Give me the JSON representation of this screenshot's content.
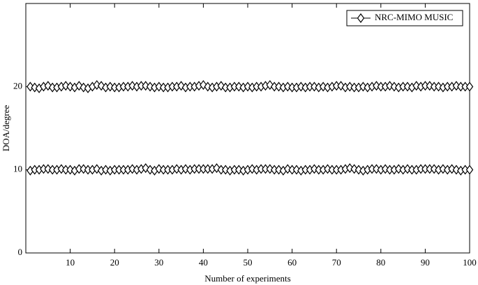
{
  "chart_data": {
    "type": "line",
    "xlabel": "Number of experiments",
    "ylabel": "DOA/degree",
    "x": [
      1,
      2,
      3,
      4,
      5,
      6,
      7,
      8,
      9,
      10,
      11,
      12,
      13,
      14,
      15,
      16,
      17,
      18,
      19,
      20,
      21,
      22,
      23,
      24,
      25,
      26,
      27,
      28,
      29,
      30,
      31,
      32,
      33,
      34,
      35,
      36,
      37,
      38,
      39,
      40,
      41,
      42,
      43,
      44,
      45,
      46,
      47,
      48,
      49,
      50,
      51,
      52,
      53,
      54,
      55,
      56,
      57,
      58,
      59,
      60,
      61,
      62,
      63,
      64,
      65,
      66,
      67,
      68,
      69,
      70,
      71,
      72,
      73,
      74,
      75,
      76,
      77,
      78,
      79,
      80,
      81,
      82,
      83,
      84,
      85,
      86,
      87,
      88,
      89,
      90,
      91,
      92,
      93,
      94,
      95,
      96,
      97,
      98,
      99,
      100
    ],
    "series": [
      {
        "name": "NRC-MIMO MUSIC",
        "color": "#000000",
        "marker": "diamond",
        "values": [
          20.0,
          19.9,
          19.8,
          20.0,
          20.1,
          19.9,
          19.9,
          20.0,
          20.1,
          20.0,
          19.9,
          20.1,
          19.9,
          19.8,
          20.0,
          20.2,
          20.1,
          19.9,
          20.0,
          19.9,
          19.9,
          20.0,
          20.0,
          20.1,
          20.0,
          20.1,
          20.1,
          20.0,
          19.9,
          20.0,
          19.9,
          19.9,
          20.0,
          20.0,
          20.1,
          19.9,
          20.0,
          20.0,
          20.1,
          20.2,
          20.0,
          19.9,
          20.0,
          20.1,
          19.9,
          19.9,
          20.0,
          20.0,
          19.9,
          20.0,
          19.9,
          20.0,
          20.0,
          20.1,
          20.2,
          20.0,
          20.0,
          19.9,
          20.0,
          19.9,
          19.9,
          20.0,
          19.9,
          20.0,
          20.0,
          19.9,
          20.0,
          19.9,
          20.0,
          20.1,
          20.1,
          19.9,
          20.0,
          19.9,
          19.9,
          20.0,
          19.9,
          20.0,
          20.1,
          20.0,
          20.0,
          20.1,
          20.0,
          19.9,
          20.0,
          20.0,
          19.9,
          20.1,
          20.0,
          20.1,
          20.1,
          20.0,
          20.0,
          19.9,
          20.0,
          20.0,
          20.1,
          20.0,
          20.0,
          20.0
        ]
      },
      {
        "color": "#000000",
        "marker": "diamond",
        "values": [
          9.9,
          10.0,
          10.0,
          10.1,
          10.1,
          10.0,
          10.0,
          10.1,
          10.0,
          10.0,
          9.9,
          10.1,
          10.1,
          10.0,
          10.0,
          10.1,
          9.9,
          10.0,
          9.9,
          10.0,
          10.0,
          10.0,
          10.0,
          10.1,
          10.0,
          10.1,
          10.2,
          10.0,
          9.9,
          10.1,
          10.0,
          10.0,
          10.0,
          10.1,
          10.0,
          10.1,
          10.0,
          10.1,
          10.1,
          10.1,
          10.1,
          10.1,
          10.2,
          10.0,
          10.0,
          9.9,
          10.0,
          10.0,
          9.9,
          10.0,
          10.1,
          10.0,
          10.1,
          10.1,
          10.1,
          10.0,
          10.0,
          9.9,
          10.1,
          10.0,
          10.0,
          9.9,
          10.0,
          10.0,
          10.1,
          10.0,
          10.0,
          10.1,
          10.0,
          10.0,
          10.0,
          10.1,
          10.2,
          10.1,
          10.0,
          9.9,
          10.0,
          10.1,
          10.1,
          10.0,
          10.1,
          10.0,
          10.0,
          10.1,
          10.0,
          10.1,
          10.0,
          10.0,
          10.1,
          10.1,
          10.1,
          10.1,
          10.0,
          10.1,
          10.0,
          10.1,
          10.0,
          9.9,
          10.0,
          10.0
        ]
      }
    ],
    "xlim": [
      0,
      100
    ],
    "xticks": [
      10,
      20,
      30,
      40,
      50,
      60,
      70,
      80,
      90,
      100
    ],
    "ylim": [
      0,
      30
    ],
    "yticks": [
      0,
      10,
      20
    ],
    "grid": false,
    "legend": "upper right"
  }
}
